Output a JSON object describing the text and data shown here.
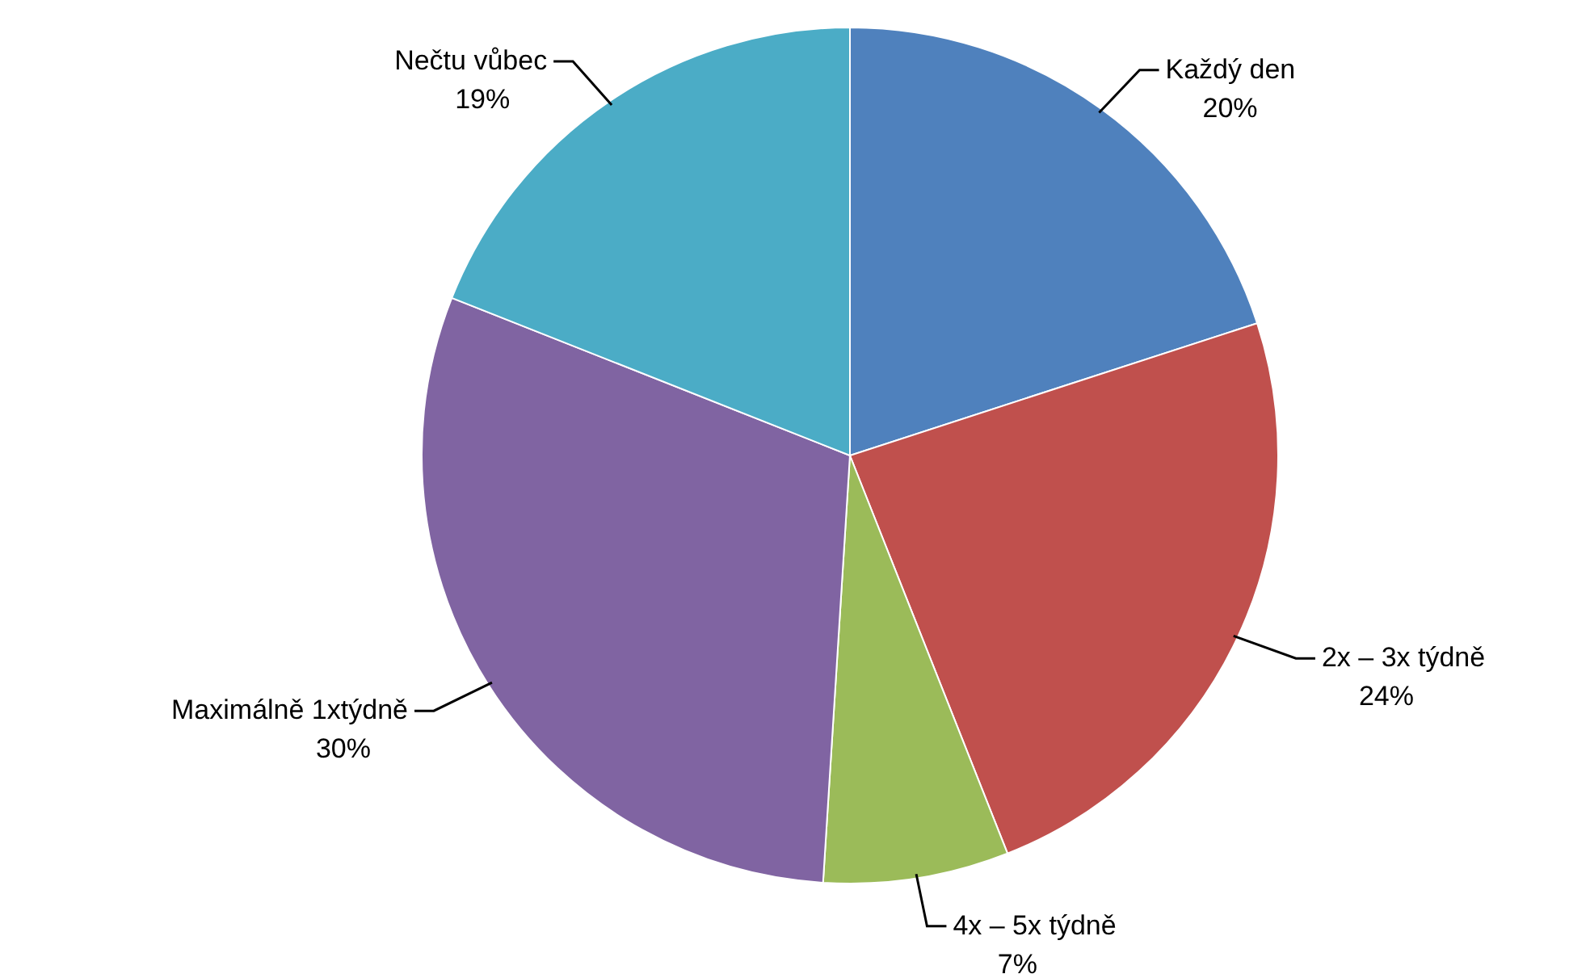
{
  "chart_data": {
    "type": "pie",
    "categories": [
      "Každý den",
      "2x – 3x týdně",
      "4x – 5x týdně",
      "Maximálně 1xtýdně",
      "Nečtu vůbec"
    ],
    "values": [
      20,
      24,
      7,
      30,
      19
    ],
    "value_labels": [
      "20%",
      "24%",
      "7%",
      "30%",
      "19%"
    ],
    "colors": [
      "#4f81bd",
      "#c0504d",
      "#9bbb59",
      "#8064a2",
      "#4bacc6"
    ]
  }
}
